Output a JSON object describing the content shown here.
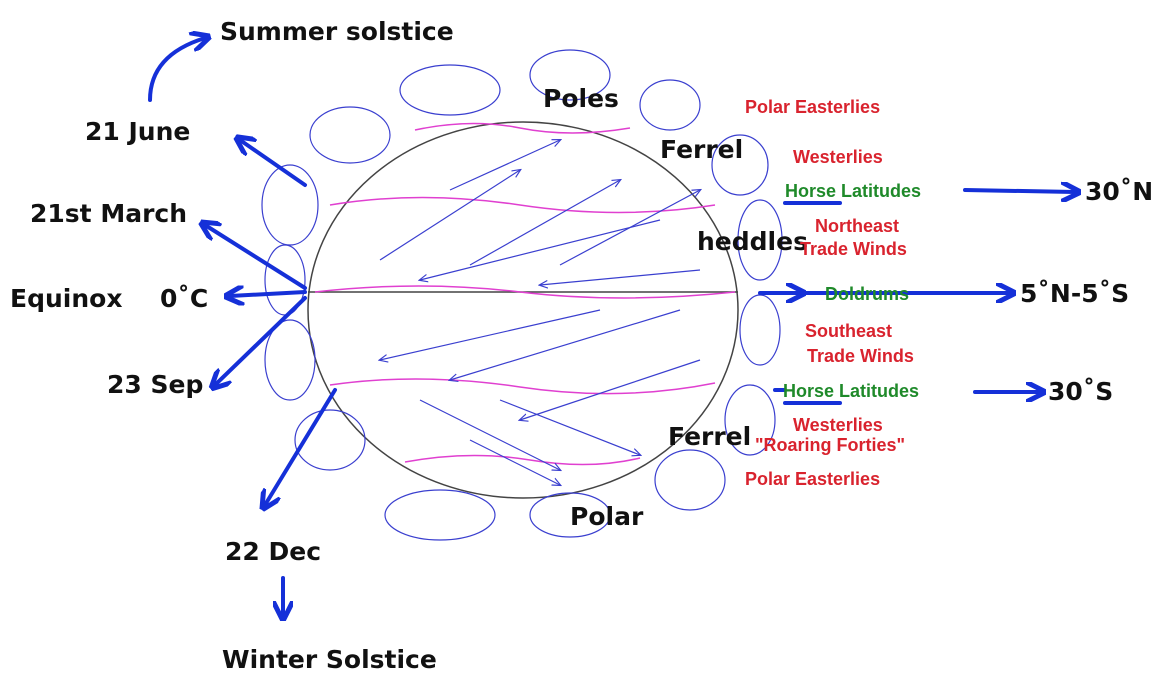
{
  "annotations": {
    "summer": "Summer solstice",
    "june": "21 June",
    "march": "21st March",
    "equinox": "Equinox",
    "zero": "0˚C",
    "sep": "23 Sep",
    "dec": "22 Dec",
    "winter": "Winter Solstice"
  },
  "cells": {
    "poles": "Poles",
    "ferrel_n": "Ferrel",
    "heddles": "heddles",
    "ferrel_s": "Ferrel",
    "polar": "Polar"
  },
  "winds": {
    "polar_easterlies_n": "Polar Easterlies",
    "westerlies_n": "Westerlies",
    "horse_n": "Horse Latitudes",
    "ne_trade": [
      "Northeast",
      "Trade Winds"
    ],
    "doldrums": "Doldrums",
    "se_trade": [
      "Southeast",
      "Trade Winds"
    ],
    "horse_s": "Horse Latitudes",
    "westerlies_s": "Westerlies",
    "roaring": "\"Roaring Forties\"",
    "polar_easterlies_s": "Polar Easterlies"
  },
  "latitudes": {
    "n30": "30˚N",
    "eq": "5˚N-5˚S",
    "s30": "30˚S"
  }
}
